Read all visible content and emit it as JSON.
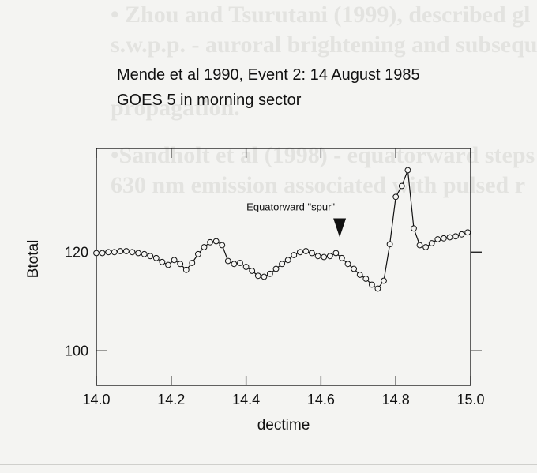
{
  "background_text": [
    "• Zhou and Tsurutani (1999), described gl",
    "s.w.p.p. - auroral brightening and subsequ",
    "propagation.",
    "•Sandholt et al (1998) - equatorward steps",
    "630 nm emission associated with pulsed r"
  ],
  "chart_data": {
    "type": "line",
    "title": "Mende et al 1990, Event 2: 14 August 1985",
    "subtitle": "GOES 5 in morning sector",
    "xlabel": "dectime",
    "ylabel": "Btotal",
    "xlim": [
      14.0,
      15.0
    ],
    "ylim": [
      93,
      141
    ],
    "x_ticks": [
      14.0,
      14.2,
      14.4,
      14.6,
      14.8,
      15.0
    ],
    "x_tick_labels": [
      "14.0",
      "14.2",
      "14.4",
      "14.6",
      "14.8",
      "15.0"
    ],
    "y_ticks": [
      100,
      120
    ],
    "y_tick_labels": [
      "100",
      "120"
    ],
    "grid": false,
    "marker": "open-circle",
    "annotation": {
      "text": "Equatorward \"spur\"",
      "x": 14.65,
      "y": 123
    },
    "series": [
      {
        "x": [
          14.0,
          14.016,
          14.032,
          14.048,
          14.064,
          14.08,
          14.096,
          14.112,
          14.128,
          14.144,
          14.16,
          14.176,
          14.192,
          14.208,
          14.224,
          14.24,
          14.256,
          14.272,
          14.288,
          14.304,
          14.32,
          14.336,
          14.352,
          14.368,
          14.384,
          14.4,
          14.416,
          14.432,
          14.448,
          14.464,
          14.48,
          14.496,
          14.512,
          14.528,
          14.544,
          14.56,
          14.576,
          14.592,
          14.608,
          14.624,
          14.64,
          14.656,
          14.672,
          14.688,
          14.704,
          14.72,
          14.736,
          14.752,
          14.768,
          14.784,
          14.8,
          14.816,
          14.832,
          14.848,
          14.864,
          14.88,
          14.896,
          14.912,
          14.928,
          14.944,
          14.96,
          14.976,
          14.992
        ],
        "y": [
          119.8,
          119.8,
          120.0,
          120.0,
          120.2,
          120.2,
          120.0,
          119.8,
          119.6,
          119.2,
          118.8,
          118.0,
          117.4,
          118.4,
          117.6,
          116.4,
          117.8,
          119.6,
          121.0,
          122.0,
          122.2,
          121.4,
          118.2,
          117.6,
          117.8,
          117.0,
          116.2,
          115.2,
          115.0,
          115.6,
          116.6,
          117.6,
          118.4,
          119.4,
          120.0,
          120.2,
          119.8,
          119.2,
          119.0,
          119.2,
          119.8,
          118.8,
          117.6,
          116.6,
          115.4,
          114.6,
          113.4,
          112.6,
          114.2,
          121.6,
          131.2,
          133.4,
          136.6,
          124.8,
          121.4,
          121.0,
          121.8,
          122.6,
          122.8,
          123.0,
          123.2,
          123.6,
          124.0
        ]
      }
    ]
  }
}
